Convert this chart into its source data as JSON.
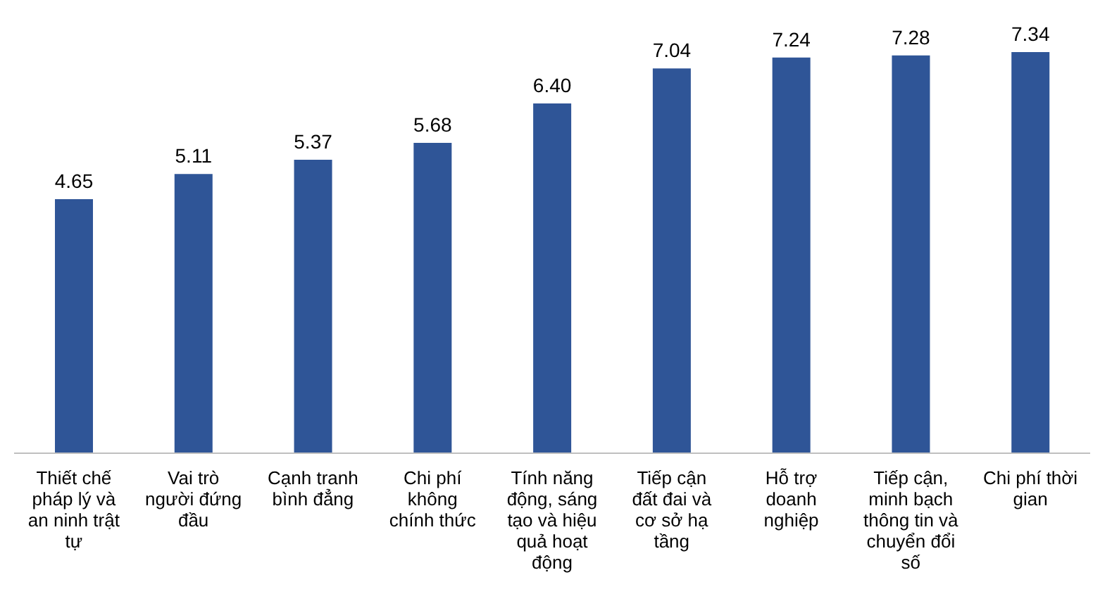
{
  "chart_data": {
    "type": "bar",
    "categories": [
      "Thiết chế pháp lý và an ninh trật tự",
      "Vai trò người đứng đầu",
      "Cạnh tranh bình đẳng",
      "Chi phí không chính thức",
      "Tính năng động, sáng tạo và hiệu quả hoạt động",
      "Tiếp cận đất đai và cơ sở hạ tầng",
      "Hỗ trợ doanh nghiệp",
      "Tiếp cận, minh bạch thông tin và chuyển đổi số",
      "Chi phí thời gian"
    ],
    "values": [
      4.65,
      5.11,
      5.37,
      5.68,
      6.4,
      7.04,
      7.24,
      7.28,
      7.34
    ],
    "value_labels": [
      "4.65",
      "5.11",
      "5.37",
      "5.68",
      "6.40",
      "7.04",
      "7.24",
      "7.28",
      "7.34"
    ],
    "color": "#2f5597",
    "grid": false,
    "legend": false
  }
}
